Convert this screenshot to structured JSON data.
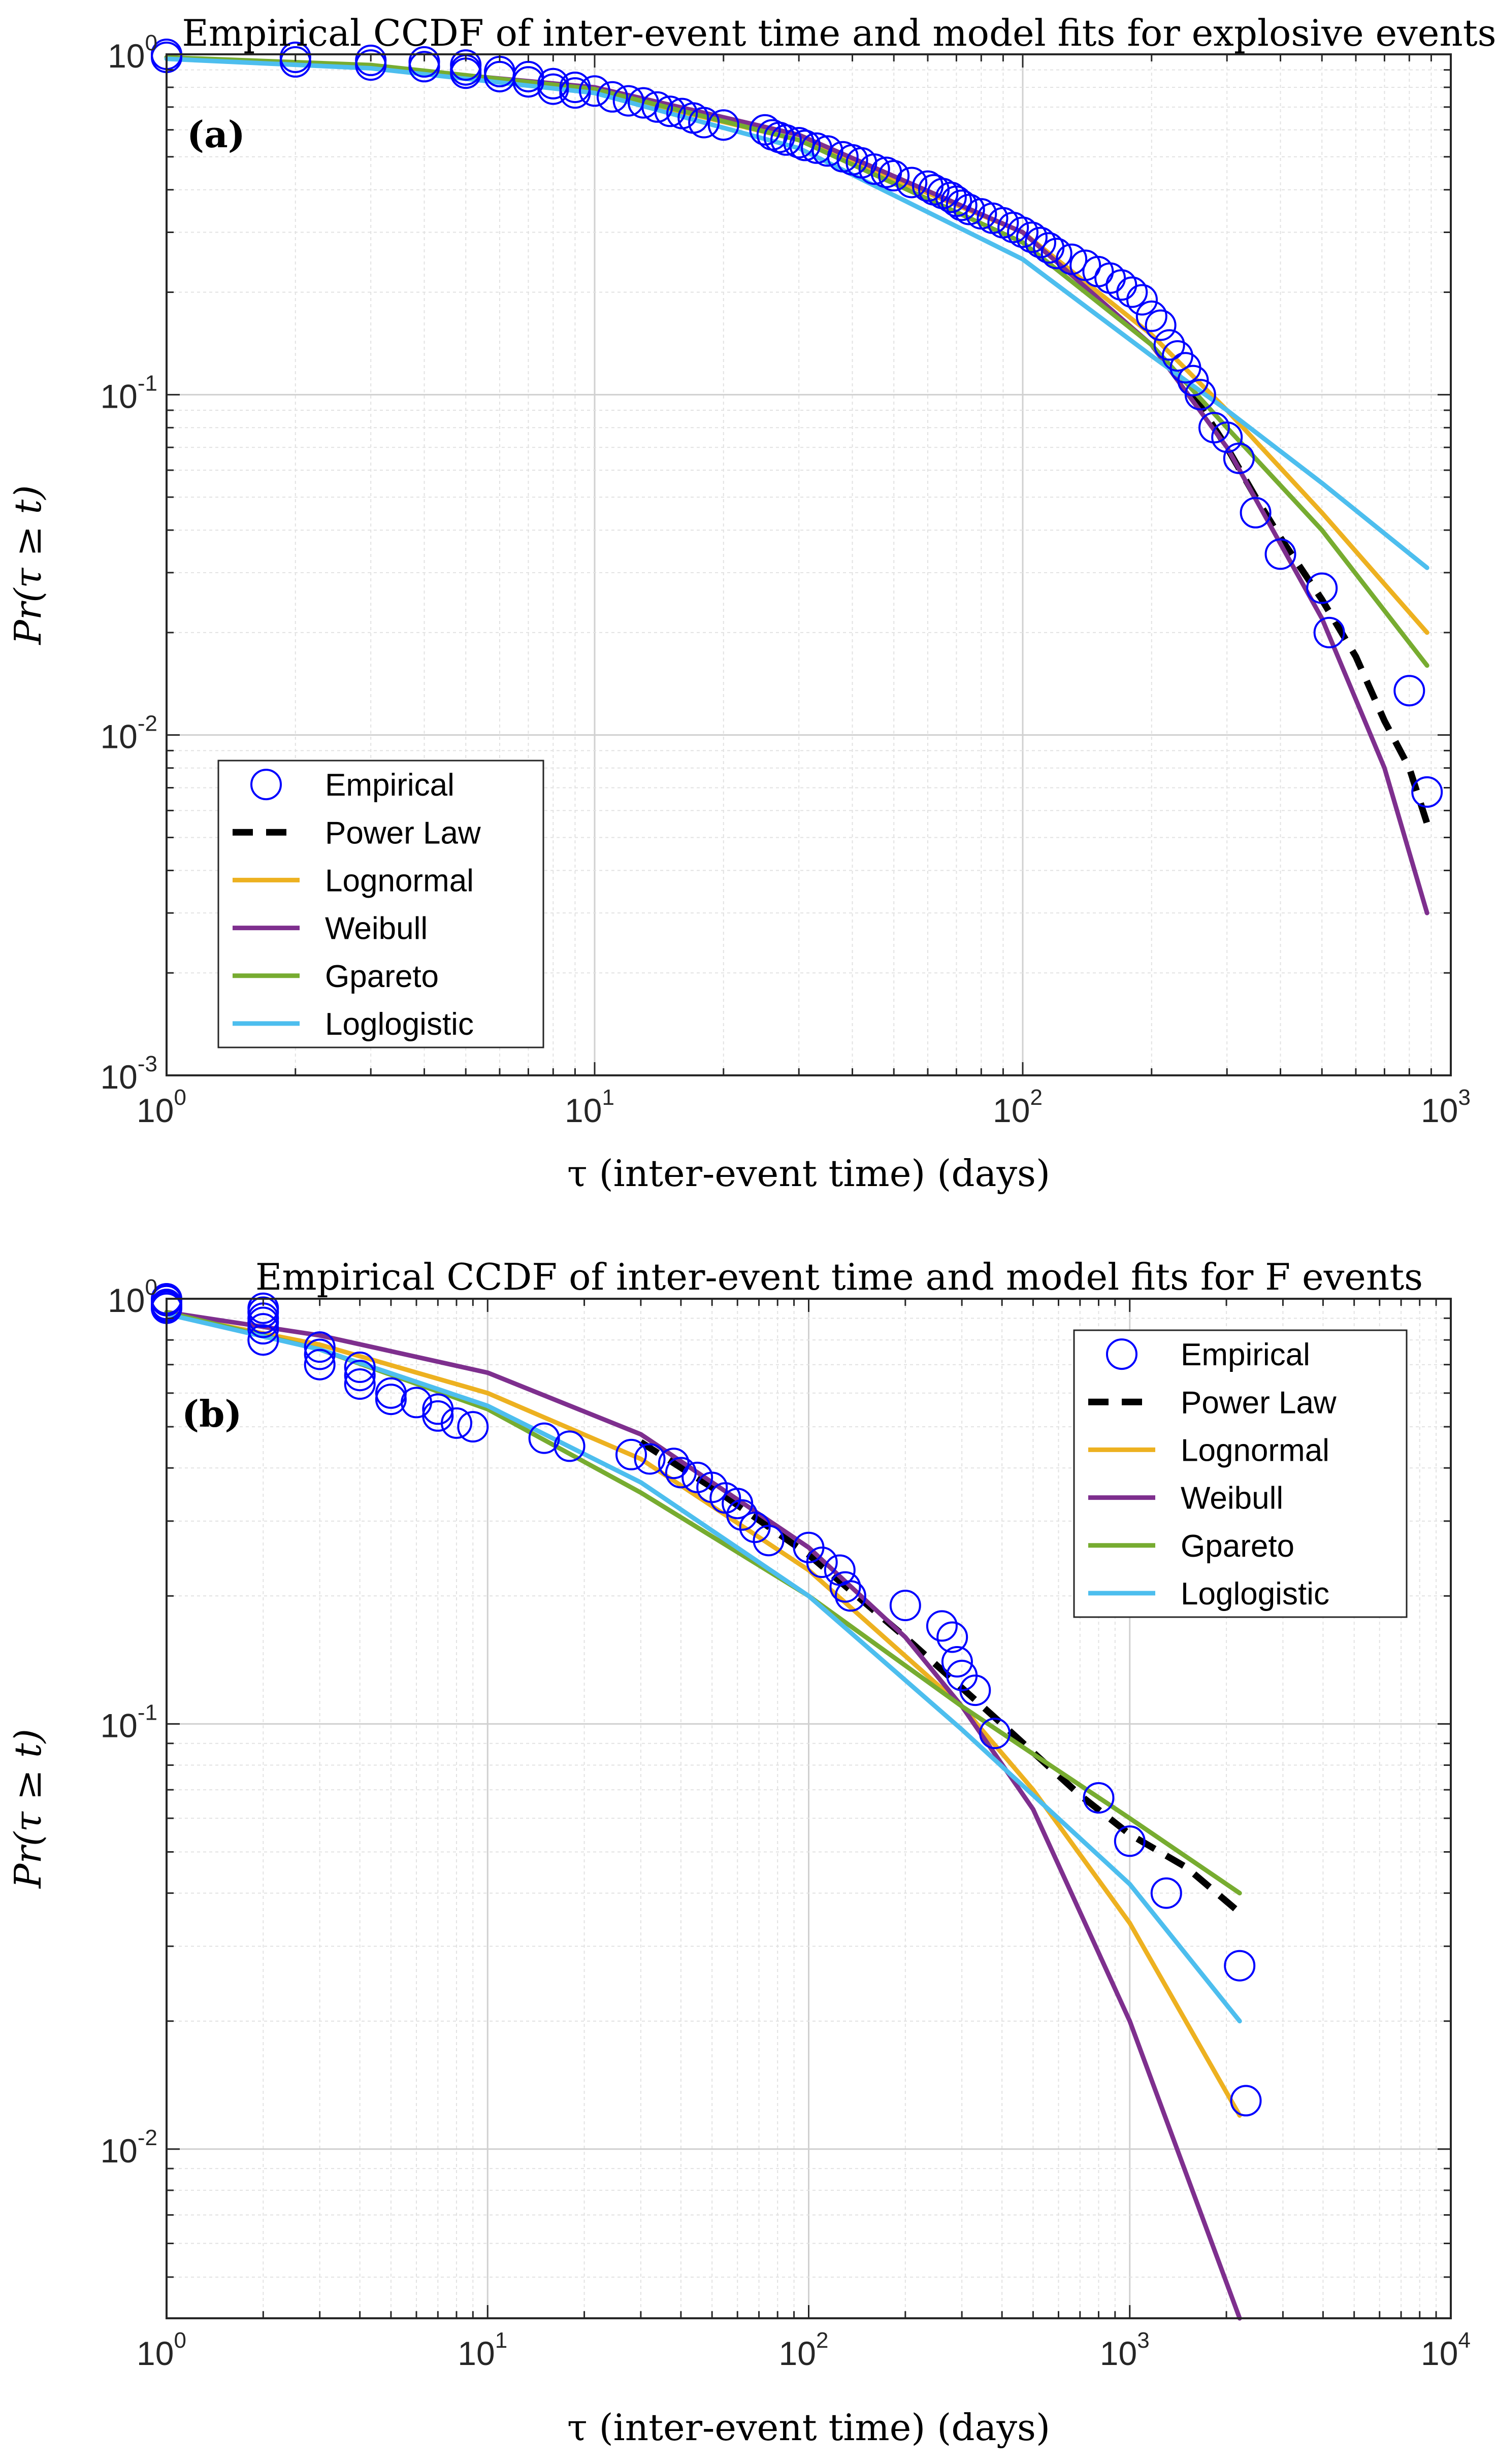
{
  "chart_data": [
    {
      "type": "scatter",
      "title": "Empirical CCDF of inter-event time and model fits for explosive events",
      "panel_label": "(a)",
      "xlabel": "τ (inter-event time) (days)",
      "ylabel": "Pr(τ ≥ t)",
      "xscale": "log",
      "yscale": "log",
      "xlim": [
        1,
        1000
      ],
      "ylim": [
        0.001,
        1
      ],
      "grid": true,
      "legend_position": "bottom-left",
      "x_ticks": [
        {
          "base": "10",
          "exp": "0"
        },
        {
          "base": "10",
          "exp": "1"
        },
        {
          "base": "10",
          "exp": "2"
        },
        {
          "base": "10",
          "exp": "3"
        }
      ],
      "y_ticks": [
        {
          "base": "10",
          "exp": "-3"
        },
        {
          "base": "10",
          "exp": "-2"
        },
        {
          "base": "10",
          "exp": "-1"
        },
        {
          "base": "10",
          "exp": "0"
        }
      ],
      "series": [
        {
          "name": "Empirical",
          "kind": "markers",
          "color": "#0000ff",
          "x": [
            1,
            1,
            2,
            2,
            3,
            3,
            4,
            4,
            5,
            5,
            5,
            6,
            6,
            7,
            7,
            8,
            8,
            9,
            9,
            10,
            11,
            12,
            13,
            14,
            15,
            16,
            17,
            18,
            20,
            25,
            26,
            27,
            28,
            30,
            31,
            33,
            35,
            38,
            40,
            42,
            45,
            48,
            50,
            55,
            60,
            62,
            65,
            68,
            70,
            72,
            75,
            80,
            85,
            90,
            95,
            100,
            105,
            110,
            115,
            120,
            130,
            140,
            150,
            160,
            170,
            180,
            190,
            200,
            210,
            220,
            230,
            240,
            250,
            260,
            280,
            300,
            320,
            350,
            400,
            500,
            520,
            800,
            880
          ],
          "y": [
            1,
            0.98,
            0.98,
            0.95,
            0.96,
            0.93,
            0.95,
            0.92,
            0.93,
            0.9,
            0.88,
            0.89,
            0.86,
            0.86,
            0.83,
            0.82,
            0.79,
            0.8,
            0.77,
            0.78,
            0.75,
            0.73,
            0.72,
            0.7,
            0.68,
            0.67,
            0.65,
            0.63,
            0.62,
            0.6,
            0.58,
            0.57,
            0.56,
            0.55,
            0.54,
            0.53,
            0.52,
            0.5,
            0.49,
            0.48,
            0.46,
            0.45,
            0.44,
            0.42,
            0.41,
            0.4,
            0.39,
            0.38,
            0.37,
            0.36,
            0.35,
            0.34,
            0.33,
            0.32,
            0.31,
            0.3,
            0.29,
            0.28,
            0.27,
            0.26,
            0.25,
            0.24,
            0.23,
            0.22,
            0.21,
            0.2,
            0.19,
            0.17,
            0.16,
            0.14,
            0.13,
            0.12,
            0.11,
            0.1,
            0.08,
            0.075,
            0.065,
            0.045,
            0.034,
            0.027,
            0.02,
            0.0135,
            0.0068
          ]
        },
        {
          "name": "Power Law",
          "kind": "dashed",
          "color": "#000000",
          "x": [
            250,
            300,
            350,
            400,
            500,
            600,
            700,
            800,
            880
          ],
          "y": [
            0.1,
            0.07,
            0.05,
            0.038,
            0.025,
            0.017,
            0.011,
            0.008,
            0.0055
          ]
        },
        {
          "name": "Lognormal",
          "kind": "line",
          "color": "#edb120",
          "x": [
            1,
            3,
            10,
            30,
            100,
            200,
            300,
            500,
            880
          ],
          "y": [
            0.98,
            0.92,
            0.78,
            0.56,
            0.3,
            0.15,
            0.09,
            0.045,
            0.02
          ]
        },
        {
          "name": "Weibull",
          "kind": "line",
          "color": "#7e2f8e",
          "x": [
            1,
            3,
            10,
            30,
            100,
            200,
            300,
            500,
            700,
            880
          ],
          "y": [
            0.98,
            0.92,
            0.8,
            0.58,
            0.3,
            0.14,
            0.07,
            0.022,
            0.008,
            0.003
          ]
        },
        {
          "name": "Gpareto",
          "kind": "line",
          "color": "#77ac30",
          "x": [
            1,
            3,
            10,
            30,
            100,
            200,
            300,
            500,
            880
          ],
          "y": [
            0.98,
            0.93,
            0.79,
            0.56,
            0.28,
            0.14,
            0.08,
            0.04,
            0.016
          ]
        },
        {
          "name": "Loglogistic",
          "kind": "line",
          "color": "#4dbeee",
          "x": [
            1,
            3,
            10,
            30,
            100,
            200,
            300,
            500,
            880
          ],
          "y": [
            0.97,
            0.91,
            0.77,
            0.53,
            0.25,
            0.13,
            0.09,
            0.055,
            0.031
          ]
        }
      ]
    },
    {
      "type": "scatter",
      "title": "Empirical CCDF of inter-event time and model fits for F events",
      "panel_label": "(b)",
      "xlabel": "τ (inter-event time) (days)",
      "ylabel": "Pr(τ ≥ t)",
      "xscale": "log",
      "yscale": "log",
      "xlim": [
        1,
        10000
      ],
      "ylim": [
        0.004,
        1
      ],
      "grid": true,
      "legend_position": "top-right",
      "x_ticks": [
        {
          "base": "10",
          "exp": "0"
        },
        {
          "base": "10",
          "exp": "1"
        },
        {
          "base": "10",
          "exp": "2"
        },
        {
          "base": "10",
          "exp": "3"
        },
        {
          "base": "10",
          "exp": "4"
        }
      ],
      "y_ticks": [
        {
          "base": "10",
          "exp": "-2"
        },
        {
          "base": "10",
          "exp": "-1"
        },
        {
          "base": "10",
          "exp": "0"
        }
      ],
      "series": [
        {
          "name": "Empirical",
          "kind": "markers",
          "color": "#0000ff",
          "x": [
            1,
            1,
            1,
            1,
            1,
            2,
            2,
            2,
            2,
            2,
            2,
            3,
            3,
            3,
            4,
            4,
            4,
            5,
            5,
            6,
            7,
            7,
            8,
            9,
            15,
            18,
            28,
            32,
            38,
            40,
            45,
            50,
            55,
            60,
            62,
            68,
            75,
            100,
            110,
            125,
            130,
            135,
            200,
            260,
            280,
            290,
            300,
            330,
            380,
            800,
            1000,
            1300,
            2200,
            2300
          ],
          "y": [
            1,
            0.99,
            0.97,
            0.96,
            0.95,
            0.95,
            0.93,
            0.9,
            0.88,
            0.85,
            0.8,
            0.77,
            0.74,
            0.7,
            0.69,
            0.66,
            0.63,
            0.6,
            0.58,
            0.57,
            0.55,
            0.53,
            0.51,
            0.5,
            0.47,
            0.45,
            0.43,
            0.42,
            0.41,
            0.39,
            0.38,
            0.36,
            0.34,
            0.33,
            0.31,
            0.29,
            0.27,
            0.26,
            0.24,
            0.23,
            0.21,
            0.2,
            0.19,
            0.17,
            0.16,
            0.14,
            0.13,
            0.12,
            0.095,
            0.067,
            0.053,
            0.04,
            0.027,
            0.013
          ]
        },
        {
          "name": "Power Law",
          "kind": "dashed",
          "color": "#000000",
          "x": [
            30,
            50,
            100,
            200,
            400,
            700,
            1000,
            1500,
            2200
          ],
          "y": [
            0.46,
            0.36,
            0.25,
            0.16,
            0.1,
            0.068,
            0.055,
            0.046,
            0.036
          ]
        },
        {
          "name": "Lognormal",
          "kind": "line",
          "color": "#edb120",
          "x": [
            1,
            3,
            10,
            30,
            100,
            300,
            500,
            1000,
            2200
          ],
          "y": [
            0.92,
            0.78,
            0.6,
            0.42,
            0.23,
            0.11,
            0.07,
            0.034,
            0.012
          ]
        },
        {
          "name": "Weibull",
          "kind": "line",
          "color": "#7e2f8e",
          "x": [
            1,
            3,
            10,
            30,
            100,
            200,
            300,
            500,
            1000,
            2200
          ],
          "y": [
            0.93,
            0.82,
            0.67,
            0.48,
            0.26,
            0.16,
            0.11,
            0.063,
            0.02,
            0.004
          ]
        },
        {
          "name": "Gpareto",
          "kind": "line",
          "color": "#77ac30",
          "x": [
            1,
            3,
            10,
            30,
            100,
            300,
            500,
            1000,
            2200
          ],
          "y": [
            0.93,
            0.76,
            0.55,
            0.35,
            0.2,
            0.11,
            0.085,
            0.06,
            0.04
          ]
        },
        {
          "name": "Loglogistic",
          "kind": "line",
          "color": "#4dbeee",
          "x": [
            1,
            3,
            10,
            30,
            100,
            300,
            500,
            1000,
            2200
          ],
          "y": [
            0.92,
            0.76,
            0.56,
            0.37,
            0.2,
            0.097,
            0.068,
            0.042,
            0.02
          ]
        }
      ]
    }
  ]
}
